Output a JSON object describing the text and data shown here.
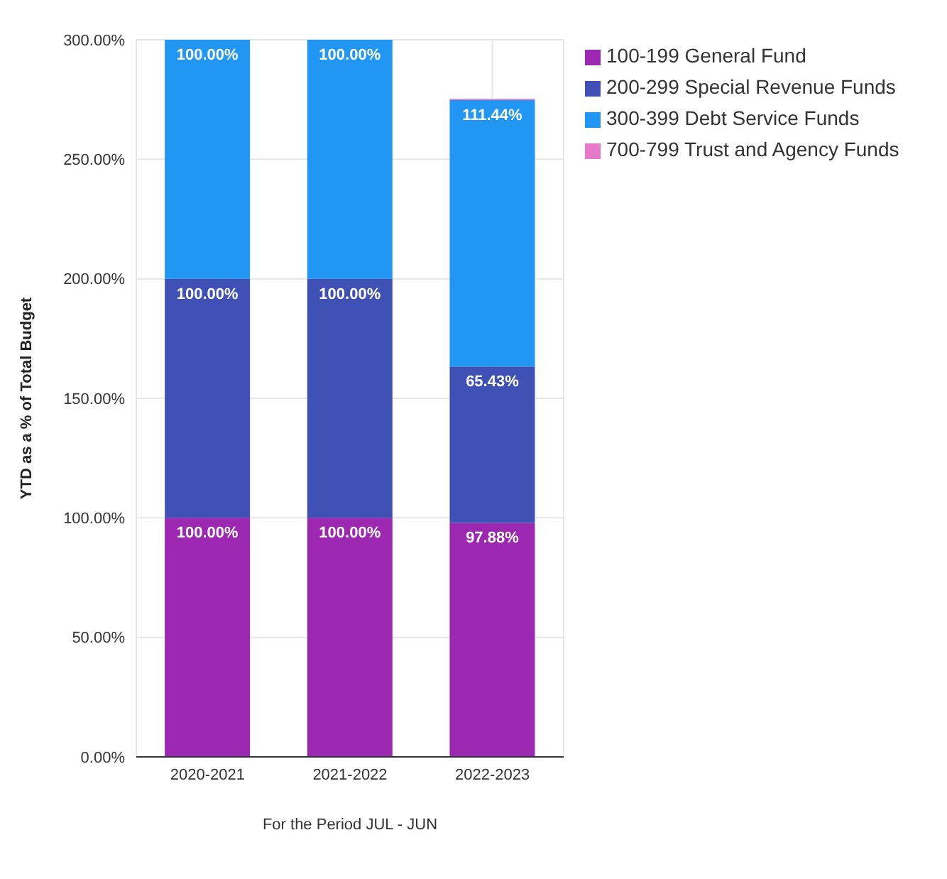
{
  "chart_data": {
    "type": "bar",
    "stacked": true,
    "xlabel": "For the Period JUL - JUN",
    "ylabel": "YTD as a % of Total Budget",
    "categories": [
      "2020-2021",
      "2021-2022",
      "2022-2023"
    ],
    "series": [
      {
        "name": "100-199 General Fund",
        "color": "#9c27b0",
        "values": [
          100,
          100,
          97.88
        ],
        "value_labels": [
          "100.00%",
          "100.00%",
          "97.88%"
        ]
      },
      {
        "name": "200-299 Special Revenue Funds",
        "color": "#3f51b5",
        "values": [
          100,
          100,
          65.43
        ],
        "value_labels": [
          "100.00%",
          "100.00%",
          "65.43%"
        ]
      },
      {
        "name": "300-399 Debt Service Funds",
        "color": "#2196f3",
        "values": [
          100,
          100,
          111.44
        ],
        "value_labels": [
          "100.00%",
          "100.00%",
          "111.44%"
        ]
      },
      {
        "name": "700-799 Trust and Agency Funds",
        "color": "#e57ac9",
        "values": [
          0,
          0,
          0.5
        ]
      }
    ],
    "ylim": [
      0,
      300
    ],
    "yticks": [
      {
        "value": 0,
        "label": "0.00%"
      },
      {
        "value": 50,
        "label": "50.00%"
      },
      {
        "value": 100,
        "label": "100.00%"
      },
      {
        "value": 150,
        "label": "150.00%"
      },
      {
        "value": 200,
        "label": "200.00%"
      },
      {
        "value": 250,
        "label": "250.00%"
      },
      {
        "value": 300,
        "label": "300.00%"
      }
    ],
    "grid": true,
    "legend": "top right"
  }
}
